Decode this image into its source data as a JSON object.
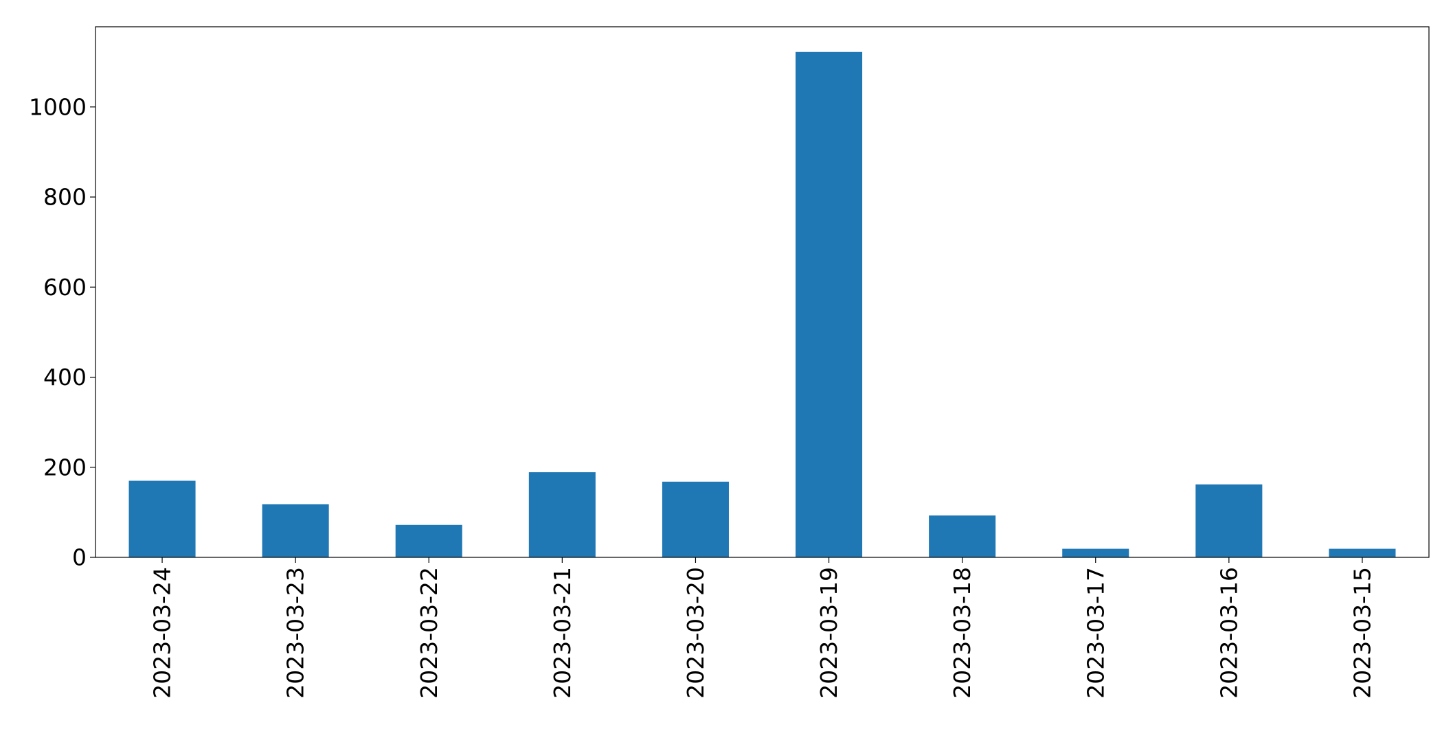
{
  "chart_data": {
    "type": "bar",
    "title": "",
    "xlabel": "",
    "ylabel": "",
    "categories": [
      "2023-03-24",
      "2023-03-23",
      "2023-03-22",
      "2023-03-21",
      "2023-03-20",
      "2023-03-19",
      "2023-03-18",
      "2023-03-17",
      "2023-03-16",
      "2023-03-15"
    ],
    "values": [
      170,
      118,
      72,
      189,
      168,
      1122,
      93,
      19,
      162,
      19
    ],
    "ylim": [
      0,
      1178
    ],
    "yticks": [
      0,
      200,
      400,
      600,
      800,
      1000
    ],
    "grid": false,
    "bar_color": "#1f77b4",
    "tick_label_rotation": "vertical"
  }
}
